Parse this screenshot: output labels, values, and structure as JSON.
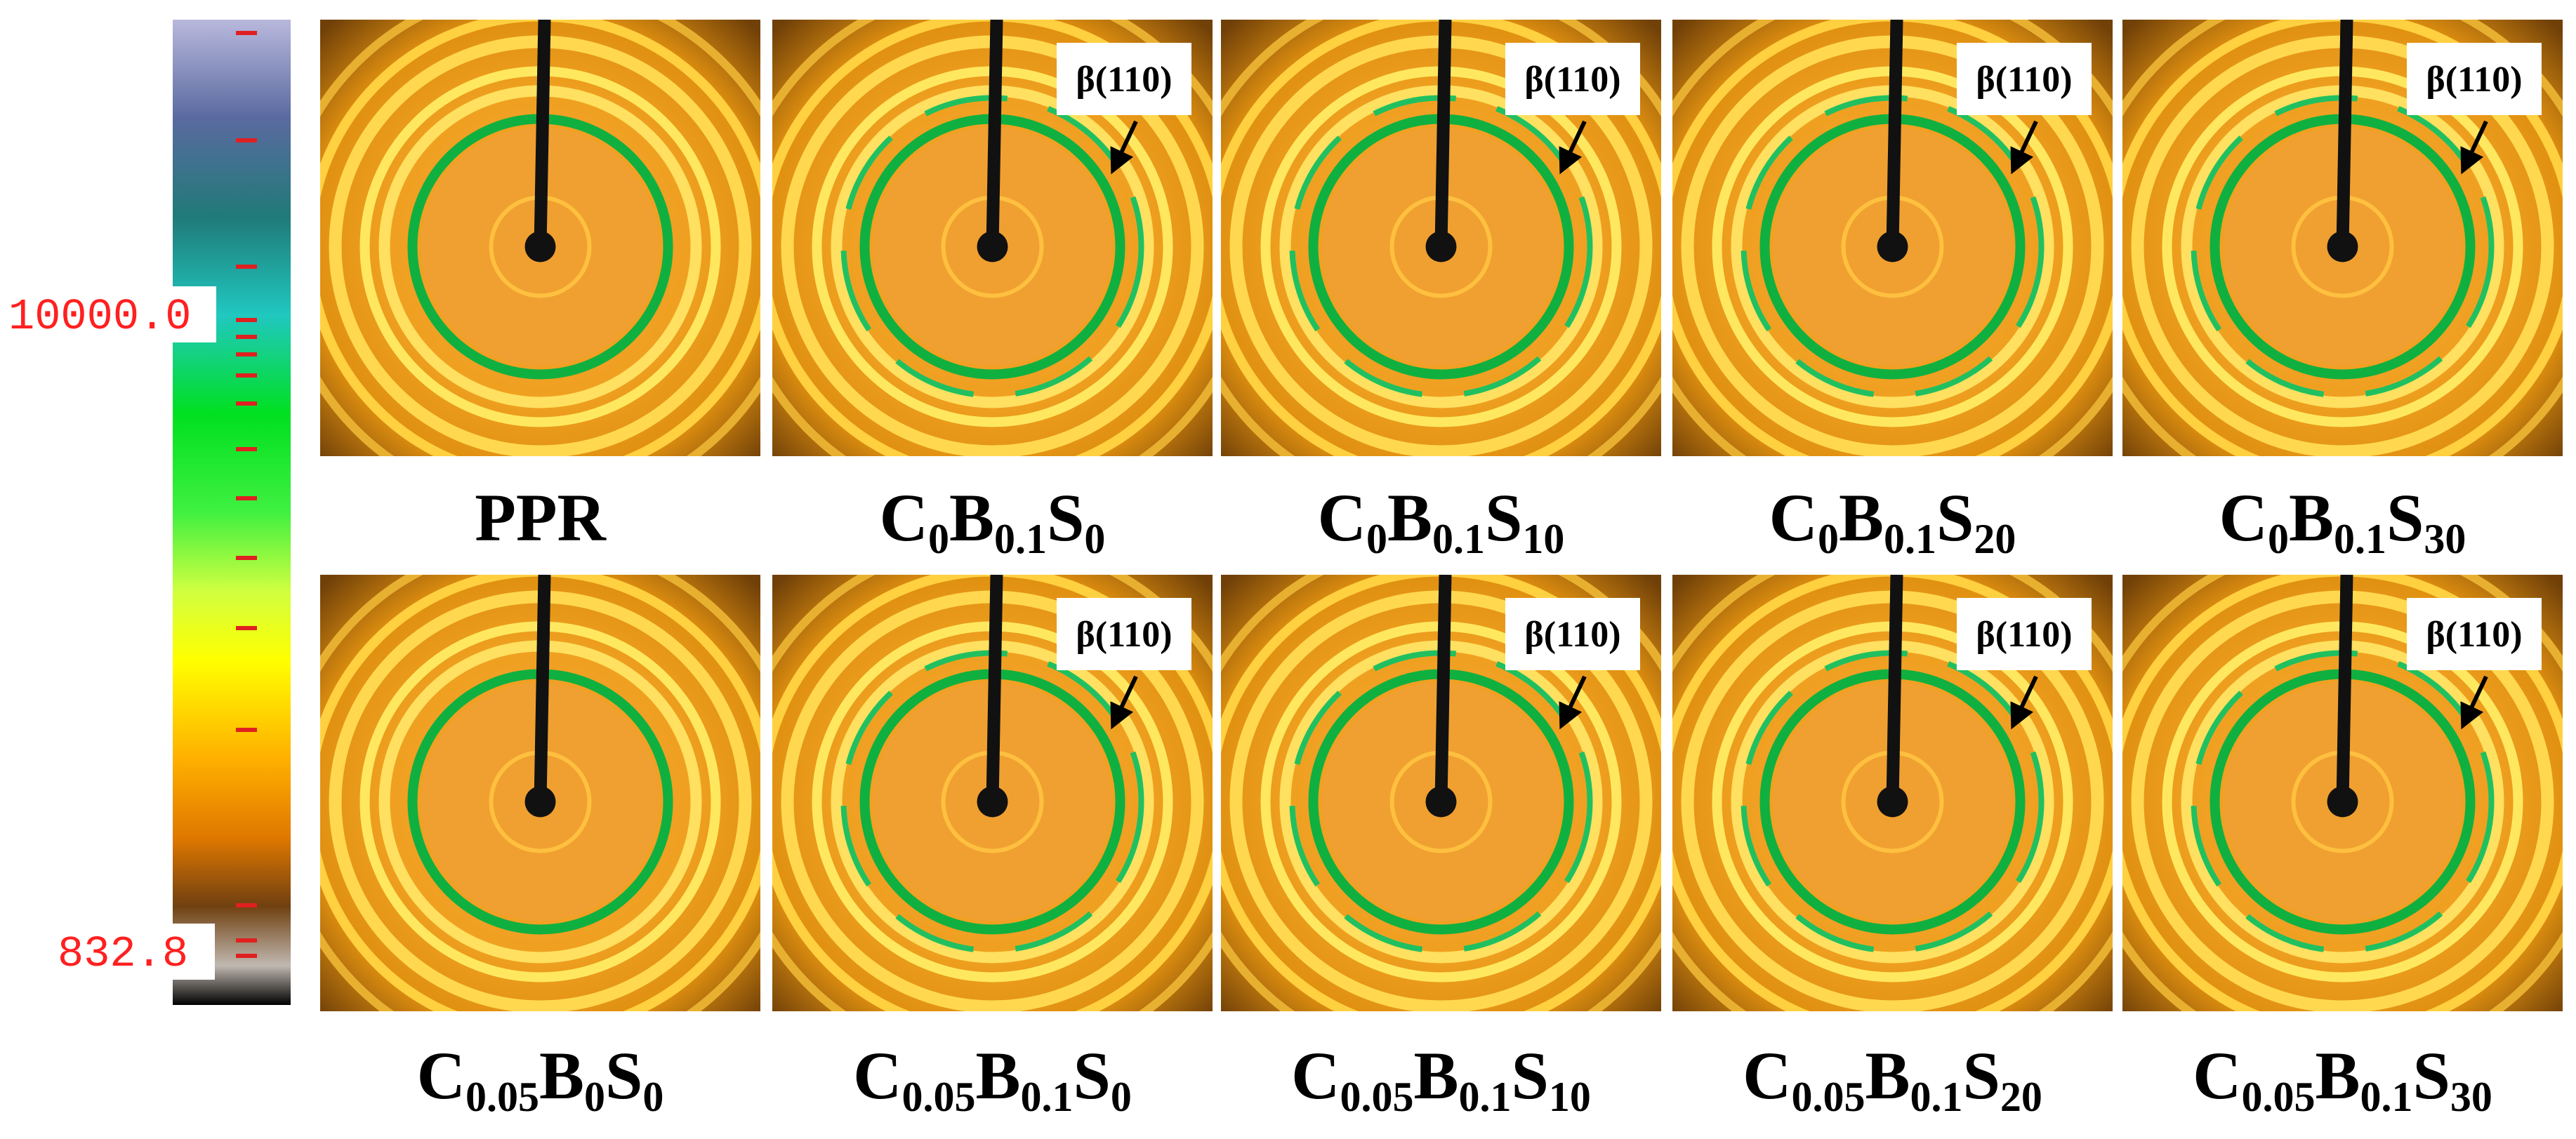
{
  "colorbar": {
    "labels": [
      "10000.0",
      "832.8"
    ]
  },
  "panels": [
    {
      "label": [
        "PPR"
      ]
    },
    {
      "label": [
        "C",
        "0",
        "B",
        "0.1",
        "S",
        "0"
      ],
      "annotation": "β(110)"
    },
    {
      "label": [
        "C",
        "0",
        "B",
        "0.1",
        "S",
        "10"
      ],
      "annotation": "β(110)"
    },
    {
      "label": [
        "C",
        "0",
        "B",
        "0.1",
        "S",
        "20"
      ],
      "annotation": "β(110)"
    },
    {
      "label": [
        "C",
        "0",
        "B",
        "0.1",
        "S",
        "30"
      ],
      "annotation": "β(110)"
    },
    {
      "label": [
        "C",
        "0.05",
        "B",
        "0",
        "S",
        "0"
      ]
    },
    {
      "label": [
        "C",
        "0.05",
        "B",
        "0.1",
        "S",
        "0"
      ],
      "annotation": "β(110)"
    },
    {
      "label": [
        "C",
        "0.05",
        "B",
        "0.1",
        "S",
        "10"
      ],
      "annotation": "β(110)"
    },
    {
      "label": [
        "C",
        "0.05",
        "B",
        "0.1",
        "S",
        "20"
      ],
      "annotation": "β(110)"
    },
    {
      "label": [
        "C",
        "0.05",
        "B",
        "0.1",
        "S",
        "30"
      ],
      "annotation": "β(110)"
    }
  ]
}
